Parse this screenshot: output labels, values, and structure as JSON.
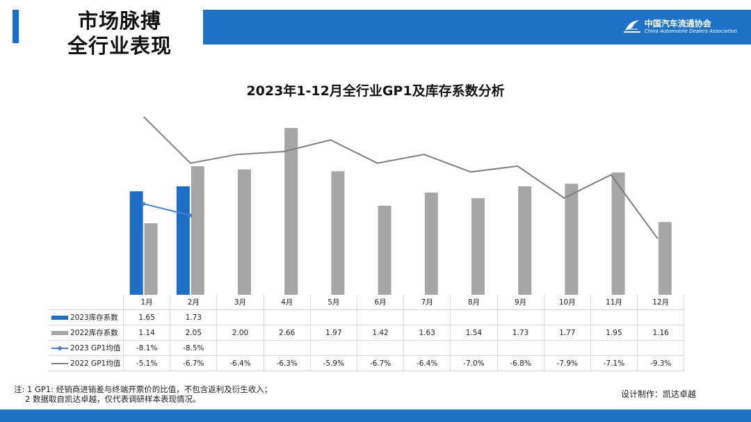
{
  "header": {
    "section_title": "市场脉搏\n全行业表现",
    "logo_cn": "中国汽车流通协会",
    "logo_en": "China Automobile Dealers Association"
  },
  "colors": {
    "brand": "#1e73c8",
    "series_2023": "#1f6ec5",
    "series_2022": "#a6a6a6"
  },
  "chart_data": {
    "type": "bar",
    "title": "2023年1-12月全行业GP1及库存系数分析",
    "categories": [
      "1月",
      "2月",
      "3月",
      "4月",
      "5月",
      "6月",
      "7月",
      "8月",
      "9月",
      "10月",
      "11月",
      "12月"
    ],
    "bar_range": [
      0,
      3
    ],
    "line_range": [
      -12,
      -4
    ],
    "series": [
      {
        "name": "2023库存系数",
        "kind": "bar",
        "color": "#1f6ec5",
        "values": [
          1.65,
          1.73,
          null,
          null,
          null,
          null,
          null,
          null,
          null,
          null,
          null,
          null
        ]
      },
      {
        "name": "2022库存系数",
        "kind": "bar",
        "color": "#a6a6a6",
        "values": [
          1.14,
          2.05,
          2.0,
          2.66,
          1.97,
          1.42,
          1.63,
          1.54,
          1.73,
          1.77,
          1.95,
          1.16
        ]
      },
      {
        "name": "2023 GP1均值",
        "kind": "line",
        "color": "#4a7fd0",
        "marker": true,
        "values": [
          -8.1,
          -8.5,
          null,
          null,
          null,
          null,
          null,
          null,
          null,
          null,
          null,
          null
        ]
      },
      {
        "name": "2022 GP1均值",
        "kind": "line",
        "color": "#7f7f7f",
        "marker": false,
        "values": [
          -5.1,
          -6.7,
          -6.4,
          -6.3,
          -5.9,
          -6.7,
          -6.4,
          -7.0,
          -6.8,
          -7.9,
          -7.1,
          -9.3
        ]
      }
    ],
    "table_rows": [
      {
        "label": "2023库存系数",
        "cells": [
          "1.65",
          "1.73",
          "",
          "",
          "",
          "",
          "",
          "",
          "",
          "",
          "",
          ""
        ]
      },
      {
        "label": "2022库存系数",
        "cells": [
          "1.14",
          "2.05",
          "2.00",
          "2.66",
          "1.97",
          "1.42",
          "1.63",
          "1.54",
          "1.73",
          "1.77",
          "1.95",
          "1.16"
        ]
      },
      {
        "label": "2023 GP1均值",
        "cells": [
          "-8.1%",
          "-8.5%",
          "",
          "",
          "",
          "",
          "",
          "",
          "",
          "",
          "",
          ""
        ]
      },
      {
        "label": "2022 GP1均值",
        "cells": [
          "-5.1%",
          "-6.7%",
          "-6.4%",
          "-6.3%",
          "-5.9%",
          "-6.7%",
          "-6.4%",
          "-7.0%",
          "-6.8%",
          "-7.9%",
          "-7.1%",
          "-9.3%"
        ]
      }
    ]
  },
  "footnote": {
    "line1": "注: 1 GP1: 经销商进销差与终端开票价的比值，不包含返利及衍生收入；",
    "line2": "2 数据取自凯达卓越，仅代表调研样本表现情况。"
  },
  "credit": "设计制作：凯达卓越"
}
